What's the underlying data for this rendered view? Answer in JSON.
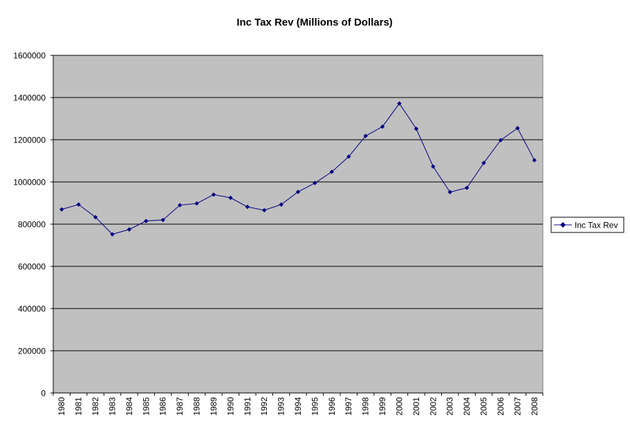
{
  "chart_data": {
    "type": "line",
    "title": "Inc Tax Rev (Millions of Dollars)",
    "xlabel": "",
    "ylabel": "",
    "ylim": [
      0,
      1600000
    ],
    "yticks": [
      "0",
      "200000",
      "400000",
      "600000",
      "800000",
      "1000000",
      "1200000",
      "1400000",
      "1600000"
    ],
    "grid": true,
    "legend": "right",
    "plot_background": "#c0c0c0",
    "series_color": "#000080",
    "categories": [
      "1980",
      "1981",
      "1982",
      "1983",
      "1984",
      "1985",
      "1986",
      "1987",
      "1988",
      "1989",
      "1990",
      "1991",
      "1992",
      "1993",
      "1994",
      "1995",
      "1996",
      "1997",
      "1998",
      "1999",
      "2000",
      "2001",
      "2002",
      "2003",
      "2004",
      "2005",
      "2006",
      "2007",
      "2008"
    ],
    "series": [
      {
        "name": "Inc Tax Rev",
        "values": [
          870000,
          893000,
          833000,
          752000,
          775000,
          815000,
          820000,
          890000,
          898000,
          940000,
          925000,
          882000,
          866000,
          893000,
          953000,
          995000,
          1048000,
          1120000,
          1218000,
          1262000,
          1372000,
          1252000,
          1073000,
          952000,
          972000,
          1090000,
          1198000,
          1255000,
          1103000
        ]
      }
    ]
  }
}
